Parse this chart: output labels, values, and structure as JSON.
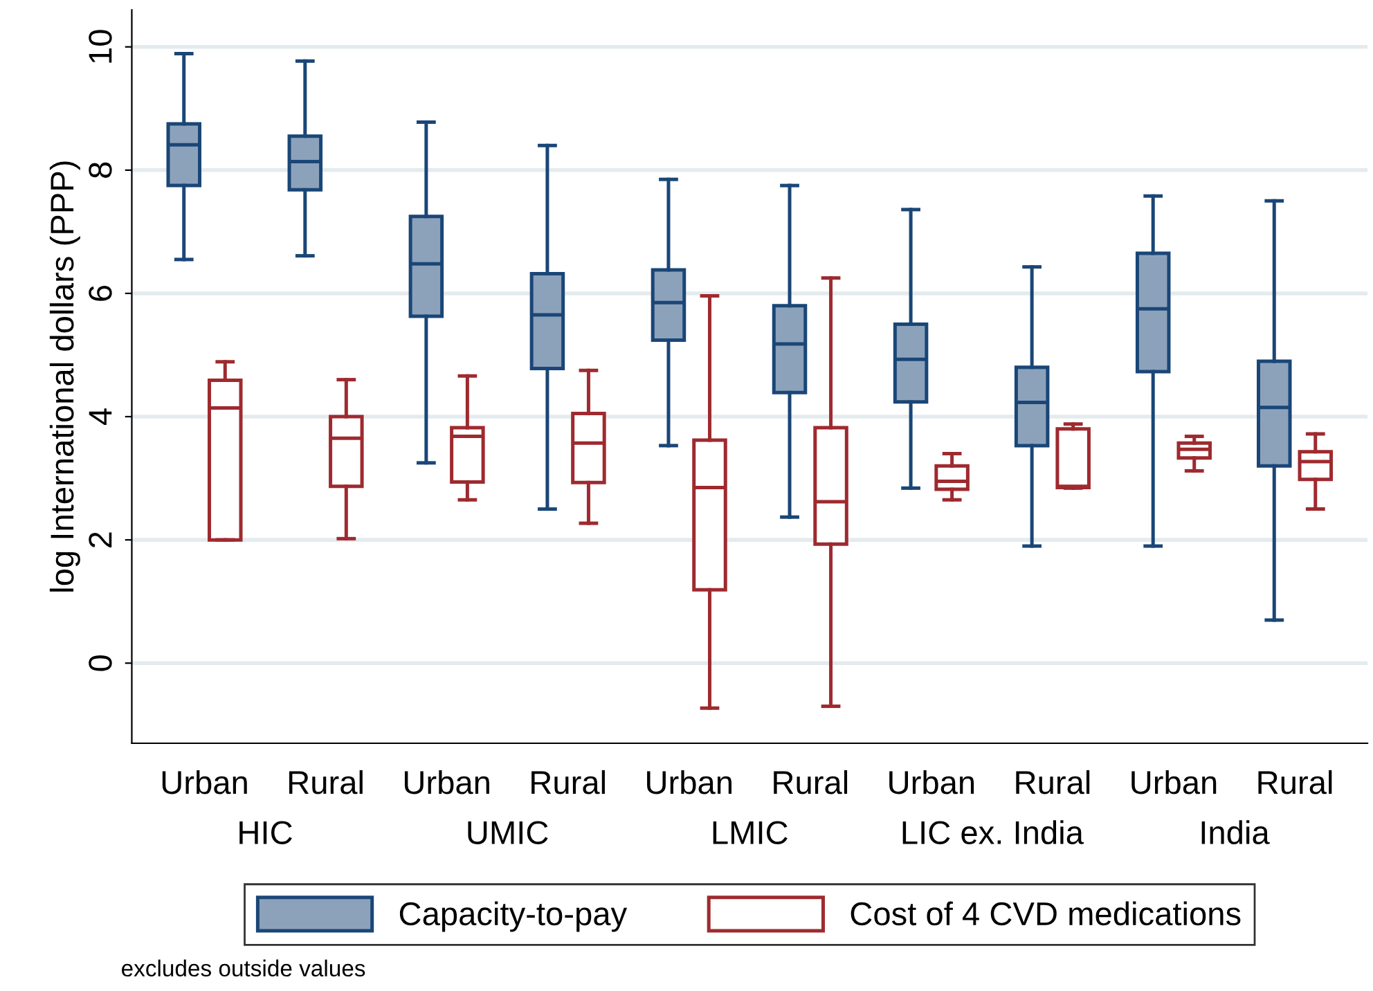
{
  "chart_data": {
    "type": "box",
    "ylabel": "log International dollars (PPP)",
    "categories": [
      "Urban",
      "Rural",
      "Urban",
      "Rural",
      "Urban",
      "Rural",
      "Urban",
      "Rural",
      "Urban",
      "Rural"
    ],
    "annotations": [
      "HIC",
      "UMIC",
      "LMIC",
      "LIC ex. India",
      "India",
      "excludes outside values"
    ],
    "ylim": [
      -1.3,
      10.6
    ],
    "yticks": [
      0,
      2,
      4,
      6,
      8,
      10
    ],
    "grid": "y",
    "legend": "bottom",
    "series": [
      {
        "name": "Capacity-to-pay",
        "color": "#1a4677",
        "boxes": [
          {
            "low": 6.55,
            "q1": 7.75,
            "median": 8.41,
            "q3": 8.75,
            "high": 9.89
          },
          {
            "low": 6.61,
            "q1": 7.68,
            "median": 8.14,
            "q3": 8.55,
            "high": 9.77
          },
          {
            "low": 3.25,
            "q1": 5.63,
            "median": 6.48,
            "q3": 7.25,
            "high": 8.78
          },
          {
            "low": 2.5,
            "q1": 4.78,
            "median": 5.65,
            "q3": 6.32,
            "high": 8.4
          },
          {
            "low": 3.53,
            "q1": 5.24,
            "median": 5.85,
            "q3": 6.38,
            "high": 7.85
          },
          {
            "low": 2.37,
            "q1": 4.39,
            "median": 5.18,
            "q3": 5.8,
            "high": 7.75
          },
          {
            "low": 2.84,
            "q1": 4.24,
            "median": 4.93,
            "q3": 5.5,
            "high": 7.36
          },
          {
            "low": 1.9,
            "q1": 3.53,
            "median": 4.23,
            "q3": 4.8,
            "high": 6.43
          },
          {
            "low": 1.9,
            "q1": 4.73,
            "median": 5.75,
            "q3": 6.65,
            "high": 7.58
          },
          {
            "low": 0.7,
            "q1": 3.2,
            "median": 4.15,
            "q3": 4.9,
            "high": 7.5
          }
        ]
      },
      {
        "name": "Cost of 4 CVD medications",
        "color": "#9e2a2f",
        "boxes": [
          {
            "low": 2.0,
            "q1": 2.0,
            "median": 4.14,
            "q3": 4.59,
            "high": 4.89
          },
          {
            "low": 2.02,
            "q1": 2.87,
            "median": 3.65,
            "q3": 4.0,
            "high": 4.6
          },
          {
            "low": 2.65,
            "q1": 2.94,
            "median": 3.68,
            "q3": 3.82,
            "high": 4.66
          },
          {
            "low": 2.27,
            "q1": 2.93,
            "median": 3.57,
            "q3": 4.05,
            "high": 4.75
          },
          {
            "low": -0.73,
            "q1": 1.19,
            "median": 2.85,
            "q3": 3.62,
            "high": 5.96
          },
          {
            "low": -0.7,
            "q1": 1.93,
            "median": 2.62,
            "q3": 3.82,
            "high": 6.25
          },
          {
            "low": 2.65,
            "q1": 2.82,
            "median": 2.95,
            "q3": 3.2,
            "high": 3.4
          },
          {
            "low": 2.84,
            "q1": 2.85,
            "median": 2.87,
            "q3": 3.8,
            "high": 3.88
          },
          {
            "low": 3.12,
            "q1": 3.33,
            "median": 3.47,
            "q3": 3.57,
            "high": 3.68
          },
          {
            "low": 2.5,
            "q1": 2.98,
            "median": 3.27,
            "q3": 3.43,
            "high": 3.72
          }
        ]
      }
    ]
  }
}
